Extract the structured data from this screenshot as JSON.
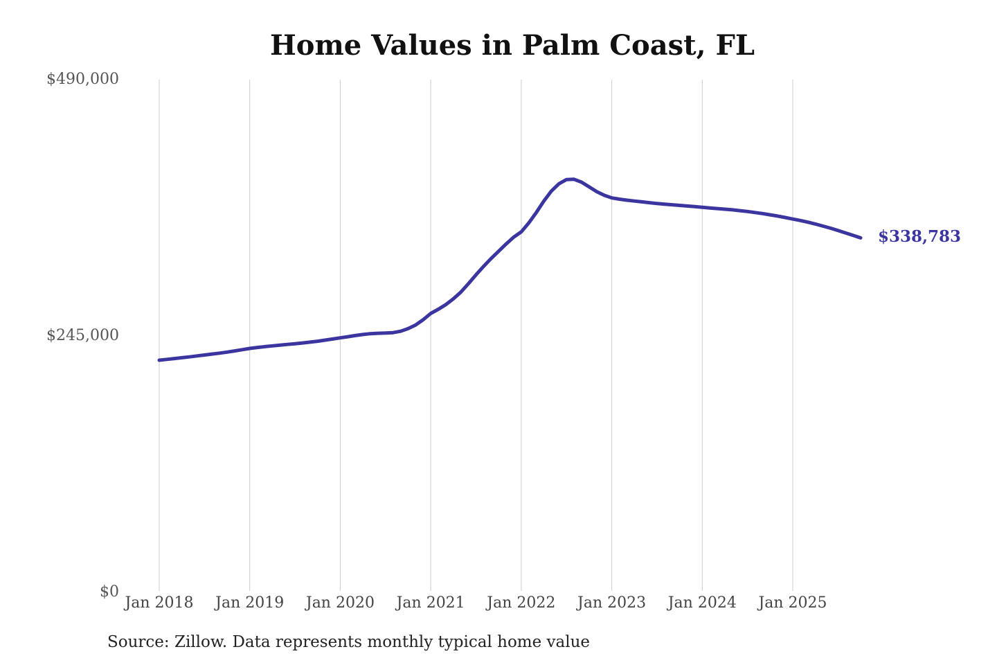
{
  "page": {
    "background": "#ffffff"
  },
  "header": {
    "title": "Home Values in Palm Coast, FL"
  },
  "footer": {
    "source_note": "Source: Zillow. Data represents monthly typical home value"
  },
  "annotation": {
    "last_value_label": "$338,783"
  },
  "colors": {
    "line": "#3b35a0",
    "grid": "#cccccc",
    "y_axis_text": "#555555",
    "x_axis_text": "#444444",
    "title_text": "#111111",
    "source_text": "#222222"
  },
  "chart_data": {
    "type": "line",
    "title": "Home Values in Palm Coast, FL",
    "series_name": "Monthly typical home value",
    "unit": "USD",
    "grid": "vertical",
    "legend": "none",
    "line_color": "#3b35a0",
    "last_point_label": "$338,783",
    "ylim": [
      0,
      490000
    ],
    "y_ticks": [
      {
        "label": "$0",
        "value": 0
      },
      {
        "label": "$245,000",
        "value": 245000
      },
      {
        "label": "$490,000",
        "value": 490000
      }
    ],
    "x_ticks": [
      {
        "label": "Jan 2018",
        "month_index": 0
      },
      {
        "label": "Jan 2019",
        "month_index": 12
      },
      {
        "label": "Jan 2020",
        "month_index": 24
      },
      {
        "label": "Jan 2021",
        "month_index": 36
      },
      {
        "label": "Jan 2022",
        "month_index": 48
      },
      {
        "label": "Jan 2023",
        "month_index": 60
      },
      {
        "label": "Jan 2024",
        "month_index": 72
      },
      {
        "label": "Jan 2025",
        "month_index": 84
      }
    ],
    "x": [
      "2018-01",
      "2018-02",
      "2018-03",
      "2018-04",
      "2018-05",
      "2018-06",
      "2018-07",
      "2018-08",
      "2018-09",
      "2018-10",
      "2018-11",
      "2018-12",
      "2019-01",
      "2019-02",
      "2019-03",
      "2019-04",
      "2019-05",
      "2019-06",
      "2019-07",
      "2019-08",
      "2019-09",
      "2019-10",
      "2019-11",
      "2019-12",
      "2020-01",
      "2020-02",
      "2020-03",
      "2020-04",
      "2020-05",
      "2020-06",
      "2020-07",
      "2020-08",
      "2020-09",
      "2020-10",
      "2020-11",
      "2020-12",
      "2021-01",
      "2021-02",
      "2021-03",
      "2021-04",
      "2021-05",
      "2021-06",
      "2021-07",
      "2021-08",
      "2021-09",
      "2021-10",
      "2021-11",
      "2021-12",
      "2022-01",
      "2022-02",
      "2022-03",
      "2022-04",
      "2022-05",
      "2022-06",
      "2022-07",
      "2022-08",
      "2022-09",
      "2022-10",
      "2022-11",
      "2022-12",
      "2023-01",
      "2023-02",
      "2023-03",
      "2023-04",
      "2023-05",
      "2023-06",
      "2023-07",
      "2023-08",
      "2023-09",
      "2023-10",
      "2023-11",
      "2023-12",
      "2024-01",
      "2024-02",
      "2024-03",
      "2024-04",
      "2024-05",
      "2024-06",
      "2024-07",
      "2024-08",
      "2024-09",
      "2024-10",
      "2024-11",
      "2024-12",
      "2025-01",
      "2025-02",
      "2025-03",
      "2025-04",
      "2025-05",
      "2025-06",
      "2025-07",
      "2025-08",
      "2025-09",
      "2025-10"
    ],
    "values": [
      221800,
      222600,
      223400,
      224200,
      225000,
      225900,
      226800,
      227700,
      228600,
      229600,
      230700,
      231900,
      233100,
      234000,
      234800,
      235500,
      236200,
      236900,
      237600,
      238300,
      239100,
      240000,
      241000,
      242100,
      243200,
      244300,
      245400,
      246400,
      247200,
      247600,
      247800,
      248200,
      249500,
      252000,
      255500,
      260500,
      266500,
      270500,
      275000,
      280500,
      287000,
      295000,
      303500,
      311500,
      319000,
      326000,
      333000,
      339500,
      344500,
      353000,
      363000,
      374000,
      383500,
      390500,
      394500,
      394800,
      392000,
      387500,
      383000,
      379500,
      377000,
      375800,
      374800,
      374000,
      373200,
      372400,
      371600,
      371000,
      370400,
      369800,
      369200,
      368600,
      368000,
      367400,
      366800,
      366200,
      365600,
      364800,
      364000,
      363000,
      362000,
      360800,
      359600,
      358200,
      356800,
      355400,
      353800,
      352000,
      350000,
      348000,
      345800,
      343500,
      341200,
      338783
    ]
  }
}
